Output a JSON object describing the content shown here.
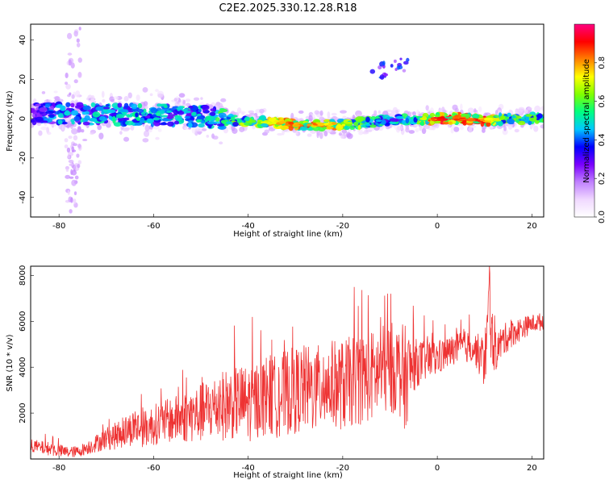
{
  "chart_data": [
    {
      "type": "heatmap",
      "title": "C2E2.2025.330.12.28.R18",
      "xlabel": "Height of straight line (km)",
      "ylabel": "Frequency (Hz)",
      "xlim": [
        -86,
        22.5
      ],
      "ylim": [
        -50,
        48
      ],
      "xticks": [
        -80,
        -60,
        -40,
        -20,
        0,
        20
      ],
      "xtick_labels": [
        "-80",
        "-60",
        "-40",
        "-20",
        "0",
        "20"
      ],
      "yticks": [
        -40,
        -20,
        0,
        20,
        40
      ],
      "ytick_labels": [
        "-40",
        "-20",
        "0",
        "20",
        "40"
      ],
      "colorbar": {
        "label": "Normalized spectral amplitude",
        "range": [
          0,
          1
        ],
        "ticks": [
          0,
          0.2,
          0.4,
          0.6,
          0.8
        ],
        "tick_labels": [
          "0.0",
          "0.2",
          "0.4",
          "0.6",
          "0.8"
        ],
        "colormap": [
          "#ffffff",
          "#f0d8ff",
          "#c080ff",
          "#7a00ff",
          "#0000ff",
          "#00c8ff",
          "#00ff80",
          "#80ff00",
          "#ffff00",
          "#ff8000",
          "#ff0000",
          "#ff0080"
        ]
      },
      "ridge": {
        "x": [
          -86,
          -80,
          -70,
          -60,
          -50,
          -46,
          -40,
          -35,
          -30,
          -25,
          -20,
          -15,
          -10,
          -5,
          0,
          5,
          10,
          15,
          20,
          22.5
        ],
        "center_hz": [
          3,
          2.5,
          2,
          2,
          1.5,
          0,
          -1.5,
          -2,
          -3,
          -3,
          -3,
          -2,
          -1,
          -0.5,
          0,
          0,
          -1,
          0,
          0,
          0
        ],
        "amplitude": [
          0.35,
          0.45,
          0.5,
          0.5,
          0.5,
          0.55,
          0.65,
          0.75,
          0.85,
          0.8,
          0.75,
          0.6,
          0.5,
          0.55,
          0.95,
          0.9,
          0.85,
          0.6,
          0.6,
          0.6
        ]
      },
      "features": [
        {
          "x": -77,
          "y_range": [
            -48,
            46
          ],
          "amplitude": 0.15
        },
        {
          "x": -10,
          "y": 25,
          "amplitude": 0.35
        }
      ]
    },
    {
      "type": "line",
      "xlabel": "Height of straight line (km)",
      "ylabel": "SNR (10 * v/v)",
      "xlim": [
        -86,
        22.5
      ],
      "ylim": [
        0,
        8400
      ],
      "xticks": [
        -80,
        -60,
        -40,
        -20,
        0,
        20
      ],
      "xtick_labels": [
        "-80",
        "-60",
        "-40",
        "-20",
        "0",
        "20"
      ],
      "yticks": [
        2000,
        4000,
        6000,
        8000
      ],
      "ytick_labels": [
        "2000",
        "4000",
        "6000",
        "8000"
      ],
      "color": "#ee3333",
      "series": [
        {
          "name": "SNR",
          "x": [
            -86,
            -84,
            -82,
            -80,
            -78,
            -76,
            -74,
            -72,
            -70,
            -68,
            -66,
            -64,
            -62,
            -60,
            -58,
            -56,
            -54,
            -52,
            -50,
            -48,
            -46,
            -44,
            -42,
            -40,
            -38,
            -36,
            -34,
            -32,
            -30,
            -28,
            -26,
            -24,
            -22,
            -20,
            -18,
            -16,
            -14,
            -12,
            -10,
            -8,
            -7,
            -6,
            -5,
            -4,
            -2,
            0,
            2,
            4,
            6,
            8,
            10,
            11,
            12,
            14,
            16,
            18,
            20,
            22.5
          ],
          "y": [
            600,
            500,
            450,
            350,
            300,
            320,
            500,
            700,
            900,
            1000,
            1200,
            1400,
            1300,
            1500,
            1600,
            1700,
            1800,
            1900,
            2000,
            2200,
            2300,
            2400,
            2500,
            2400,
            2600,
            2800,
            2700,
            2900,
            3000,
            3100,
            3000,
            3200,
            3300,
            3200,
            3400,
            3500,
            3600,
            3800,
            4000,
            3900,
            3400,
            3800,
            4100,
            4200,
            4300,
            4400,
            4600,
            4800,
            4900,
            4800,
            4200,
            6500,
            4600,
            5200,
            5500,
            5700,
            5900,
            6000
          ],
          "noise_amplitude": [
            300,
            300,
            300,
            300,
            250,
            250,
            300,
            400,
            500,
            600,
            700,
            800,
            800,
            900,
            950,
            1000,
            1100,
            1200,
            1300,
            1400,
            1500,
            1600,
            1600,
            1700,
            1700,
            1800,
            1800,
            1900,
            1900,
            1900,
            1900,
            1900,
            1900,
            2000,
            2000,
            2000,
            2000,
            2000,
            2000,
            2000,
            2500,
            1800,
            1200,
            1000,
            900,
            800,
            700,
            700,
            700,
            700,
            1200,
            1800,
            900,
            700,
            600,
            500,
            400,
            400
          ]
        }
      ]
    }
  ]
}
